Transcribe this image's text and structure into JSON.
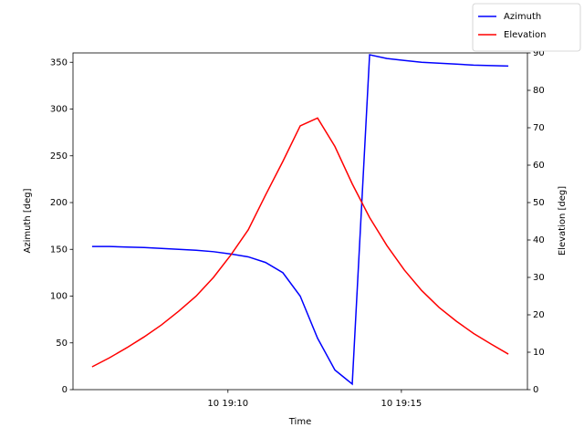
{
  "chart_data": {
    "type": "line",
    "x_label": "Time",
    "y_label": "Azimuth [deg]",
    "y2_label": "Elevation [deg]",
    "x": [
      "10 19:06:05",
      "10 19:06:35",
      "10 19:07:05",
      "10 19:07:35",
      "10 19:08:05",
      "10 19:08:35",
      "10 19:09:05",
      "10 19:09:35",
      "10 19:10:05",
      "10 19:10:35",
      "10 19:11:05",
      "10 19:11:35",
      "10 19:12:05",
      "10 19:12:35",
      "10 19:13:05",
      "10 19:13:35",
      "10 19:14:05",
      "10 19:14:35",
      "10 19:15:05",
      "10 19:15:35",
      "10 19:16:05",
      "10 19:16:35",
      "10 19:17:05",
      "10 19:17:35",
      "10 19:18:05"
    ],
    "series": [
      {
        "name": "Azimuth",
        "color": "#0000ff",
        "values": [
          153,
          153,
          152.5,
          152,
          151,
          150,
          149,
          147.5,
          145,
          142,
          136,
          125,
          100,
          55,
          21,
          6,
          358,
          354,
          352,
          350,
          349,
          348,
          347,
          346.5,
          346
        ]
      },
      {
        "name": "Elevation",
        "color": "#ff0000",
        "axis": "y2",
        "values": [
          6.1,
          8.5,
          11.2,
          14.1,
          17.3,
          21,
          25,
          30,
          36,
          42.7,
          52,
          61,
          70.5,
          72.6,
          65,
          55,
          46,
          38.5,
          32,
          26.5,
          22,
          18.3,
          15,
          12.2,
          9.5
        ]
      }
    ],
    "xlim": [
      "10 19:05:32",
      "10 19:18:38"
    ],
    "xticks": [
      "10 19:10",
      "10 19:15"
    ],
    "ylim": [
      0,
      360
    ],
    "yticks": [
      0,
      50,
      100,
      150,
      200,
      250,
      300,
      350
    ],
    "y2lim": [
      0,
      90
    ],
    "y2ticks": [
      0,
      10,
      20,
      30,
      40,
      50,
      60,
      70,
      80,
      90
    ],
    "legend": "upper right"
  }
}
